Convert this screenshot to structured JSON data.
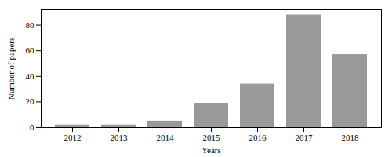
{
  "chart_data": {
    "type": "bar",
    "categories": [
      "2012",
      "2013",
      "2014",
      "2015",
      "2016",
      "2017",
      "2018"
    ],
    "values": [
      2,
      2,
      5,
      19,
      34,
      88,
      57
    ],
    "color": "#999999",
    "xlabel": "Years",
    "ylabel": "Number of papers",
    "ylim": [
      0,
      92
    ],
    "yticks": [
      0,
      20,
      40,
      60,
      80
    ],
    "grid": false
  }
}
